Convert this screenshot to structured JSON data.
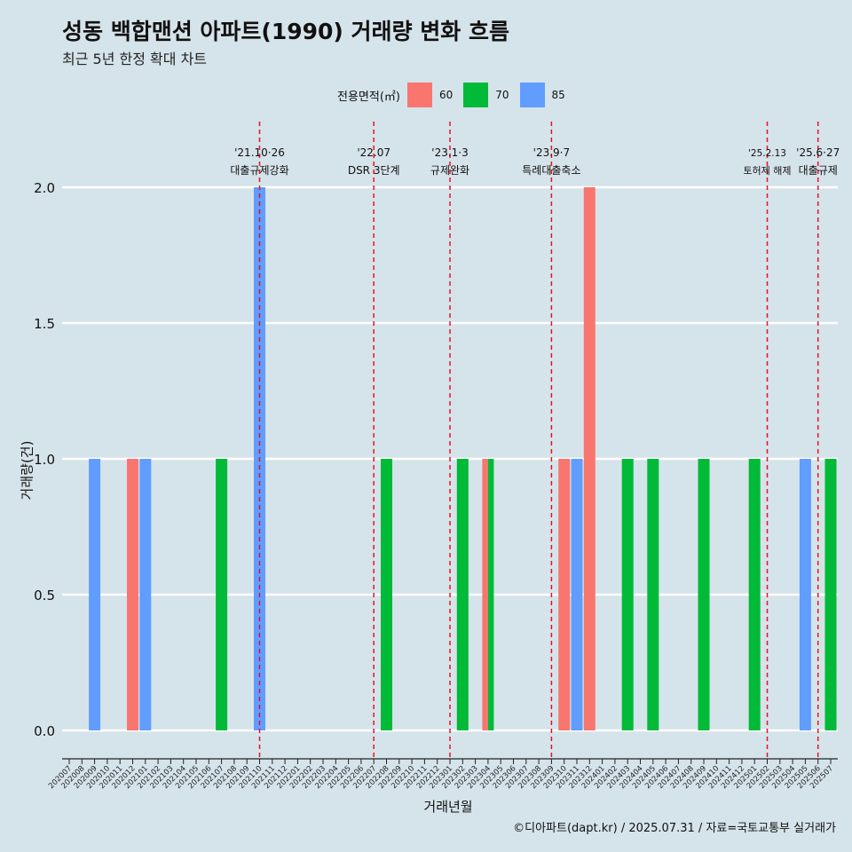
{
  "header": {
    "title": "성동 백합맨션 아파트(1990) 거래량 변화 흐름",
    "subtitle": "최근 5년 한정 확대 차트"
  },
  "legend": {
    "title": "전용면적(㎡)",
    "items": [
      {
        "label": "60",
        "color": "#f8766d"
      },
      {
        "label": "70",
        "color": "#00ba38"
      },
      {
        "label": "85",
        "color": "#619cff"
      }
    ]
  },
  "axes": {
    "xlabel": "거래년월",
    "ylabel": "거래량(건)"
  },
  "caption": "©디아파트(dapt.kr) / 2025.07.31 / 자료=국토교통부 실거래가",
  "chart_data": {
    "type": "bar",
    "categories": [
      "202007",
      "202008",
      "202009",
      "202010",
      "202011",
      "202012",
      "202101",
      "202102",
      "202103",
      "202104",
      "202105",
      "202106",
      "202107",
      "202108",
      "202109",
      "202110",
      "202111",
      "202112",
      "202201",
      "202202",
      "202203",
      "202204",
      "202205",
      "202206",
      "202207",
      "202208",
      "202209",
      "202210",
      "202211",
      "202212",
      "202301",
      "202302",
      "202303",
      "202304",
      "202305",
      "202306",
      "202307",
      "202308",
      "202309",
      "202310",
      "202311",
      "202312",
      "202401",
      "202402",
      "202403",
      "202404",
      "202405",
      "202406",
      "202407",
      "202408",
      "202409",
      "202410",
      "202411",
      "202412",
      "202501",
      "202502",
      "202503",
      "202504",
      "202505",
      "202506",
      "202507"
    ],
    "series": [
      {
        "name": "60",
        "color": "#f8766d",
        "points": [
          {
            "x": "202012",
            "y": 1
          },
          {
            "x": "202304",
            "y": 1
          },
          {
            "x": "202310",
            "y": 1
          },
          {
            "x": "202312",
            "y": 2
          }
        ]
      },
      {
        "name": "70",
        "color": "#00ba38",
        "points": [
          {
            "x": "202107",
            "y": 1
          },
          {
            "x": "202208",
            "y": 1
          },
          {
            "x": "202302",
            "y": 1
          },
          {
            "x": "202304",
            "y": 1
          },
          {
            "x": "202403",
            "y": 1
          },
          {
            "x": "202405",
            "y": 1
          },
          {
            "x": "202409",
            "y": 1
          },
          {
            "x": "202501",
            "y": 1
          },
          {
            "x": "202507",
            "y": 1
          }
        ]
      },
      {
        "name": "85",
        "color": "#619cff",
        "points": [
          {
            "x": "202009",
            "y": 1
          },
          {
            "x": "202101",
            "y": 1
          },
          {
            "x": "202110",
            "y": 2
          },
          {
            "x": "202311",
            "y": 1
          },
          {
            "x": "202505",
            "y": 1
          }
        ]
      }
    ],
    "ylim": [
      0,
      2
    ],
    "yticks": [
      "0.0",
      "0.5",
      "1.0",
      "1.5",
      "2.0"
    ],
    "grid": true,
    "legend_position": "top",
    "annotations": [
      {
        "x": "202110",
        "date": "'21.10·26",
        "label": "대출규제강화"
      },
      {
        "x": "202207",
        "date": "'22.07",
        "label": "DSR 3단계"
      },
      {
        "x": "202301",
        "date": "'23.1·3",
        "label": "규제완화"
      },
      {
        "x": "202309",
        "date": "'23.9·7",
        "label": "특례대출축소"
      },
      {
        "x": "202502",
        "date": "'25.2.13",
        "label": "토허제 해제"
      },
      {
        "x": "202506",
        "date": "'25.6·27",
        "label": "대출규제"
      }
    ]
  }
}
